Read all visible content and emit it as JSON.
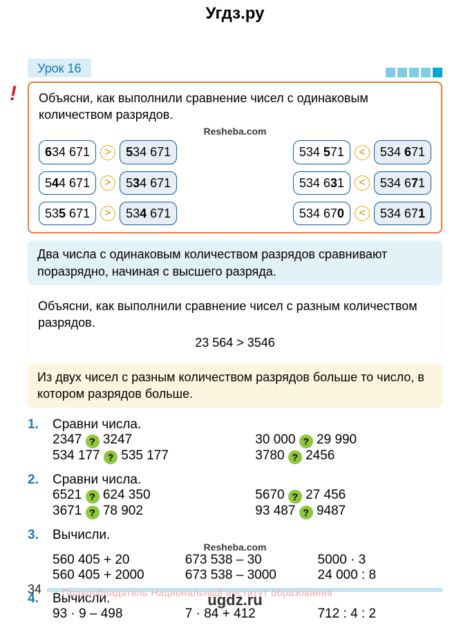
{
  "watermark_top": "Угдз.ру",
  "watermark_bottom": "ugdz.ru",
  "watermark_inline": "Resheba.com",
  "lesson_label": "Урок 16",
  "squares": [
    "#7ecde8",
    "#7ecde8",
    "#7ecde8",
    "#7ecde8",
    "#00a6d6"
  ],
  "rule": {
    "intro": "Объясни, как выполнили сравнение чисел с одинаковым количеством разрядов.",
    "left_col": [
      {
        "a": "<b>6</b>34 671",
        "op": ">",
        "b": "<b>5</b>34 671"
      },
      {
        "a": "5<b>4</b>4 671",
        "op": ">",
        "b": "5<b>3</b>4 671"
      },
      {
        "a": "53<b>5</b> 671",
        "op": ">",
        "b": "53<b>4</b> 671"
      }
    ],
    "right_col": [
      {
        "a": "534 <b>5</b>71",
        "op": "<",
        "b": "534 <b>6</b>71"
      },
      {
        "a": "534 6<b>3</b>1",
        "op": "<",
        "b": "534 6<b>7</b>1"
      },
      {
        "a": "534 67<b>0</b>",
        "op": "<",
        "b": "534 67<b>1</b>"
      }
    ],
    "blue_text": "Два числа с одинаковым количеством разрядов сравнивают поразрядно, начиная с высшего разряда.",
    "white_text": "Объясни, как выполнили сравнение чисел с разным количеством разрядов.",
    "white_expr": "23 564 > 3546",
    "yellow_text": "Из двух чисел с разным количеством разрядов больше то число, в котором разрядов больше."
  },
  "tasks": [
    {
      "n": "1.",
      "title": "Сравни числа.",
      "rows_left": [
        "2347 ? 3247",
        "534 177 ? 535 177"
      ],
      "rows_right": [
        "30 000 ? 29 990",
        "3780 ? 2456"
      ]
    },
    {
      "n": "2.",
      "title": "Сравни числа.",
      "rows_left": [
        "6521 ? 624 350",
        "3671 ? 78 902"
      ],
      "rows_right": [
        "5670 ? 27 456",
        "93 487 ? 9487"
      ]
    },
    {
      "n": "3.",
      "title": "Вычисли.",
      "three": [
        [
          "560 405 + 20",
          "560 405 + 2000"
        ],
        [
          "673 538 – 30",
          "673 538 – 3000"
        ],
        [
          "5000 · 3",
          "24 000 : 8"
        ]
      ]
    },
    {
      "n": "4.",
      "title": "Вычисли.",
      "three_single": [
        "93 · 9 – 498",
        "7 · 84 + 412",
        "712 : 4 : 2"
      ]
    }
  ],
  "page_number": "34",
  "red_faded": "Правообладатель Национальный институт образования"
}
